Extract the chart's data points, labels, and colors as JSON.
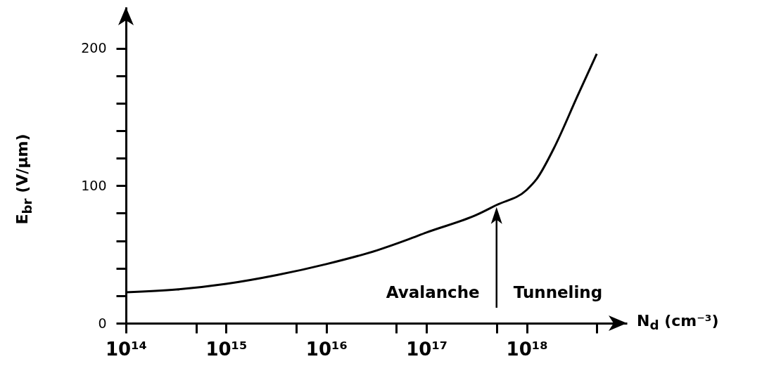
{
  "chart_data": {
    "type": "line",
    "xlabel": "N$_{d}$ (cm⁻³)",
    "ylabel": "E$_{br}$ (V/μm)",
    "log": "x",
    "xlim": [
      100000000000000.0,
      1e+19
    ],
    "ylim": [
      0,
      230
    ],
    "xticks": [
      {
        "value": 100000000000000.0,
        "label": "10¹⁴"
      },
      {
        "value": 500000000000000.0,
        "label": null
      },
      {
        "value": 1000000000000000.0,
        "label": "10¹⁵"
      },
      {
        "value": 5000000000000000.0,
        "label": null
      },
      {
        "value": 1e+16,
        "label": "10¹⁶"
      },
      {
        "value": 5e+16,
        "label": null
      },
      {
        "value": 1e+17,
        "label": "10¹⁷"
      },
      {
        "value": 5e+17,
        "label": null
      },
      {
        "value": 1e+18,
        "label": "10¹⁸"
      },
      {
        "value": 5e+18,
        "label": null
      }
    ],
    "yticks": [
      0,
      {
        "value": 20,
        "label": null
      },
      {
        "value": 40,
        "label": null
      },
      {
        "value": 60,
        "label": null
      },
      {
        "value": 80,
        "label": null
      },
      100,
      {
        "value": 120,
        "label": null
      },
      {
        "value": 140,
        "label": null
      },
      {
        "value": 160,
        "label": null
      },
      {
        "value": 180,
        "label": null
      },
      200
    ],
    "grid": false,
    "marker": "none",
    "line_style": "solid",
    "series": [
      {
        "color": "#000000",
        "x": [
          100000000000000.0,
          320000000000000.0,
          1000000000000000.0,
          3200000000000000.0,
          1e+16,
          3.2e+16,
          6.6e+16,
          1e+17,
          3.2e+17,
          5e+17,
          1e+18,
          1.26e+18,
          1.86e+18,
          3.2e+18,
          5e+18
        ],
        "values": [
          22.5,
          24.5,
          28.6,
          35,
          43,
          53,
          61,
          66,
          79,
          86,
          97,
          105,
          127,
          165,
          196
        ]
      }
    ],
    "ref_lines": [
      {
        "axis": "x",
        "value": 5e+17,
        "color": "#000000"
      }
    ],
    "annotations": [
      "Avalanche",
      "Tunneling"
    ]
  }
}
